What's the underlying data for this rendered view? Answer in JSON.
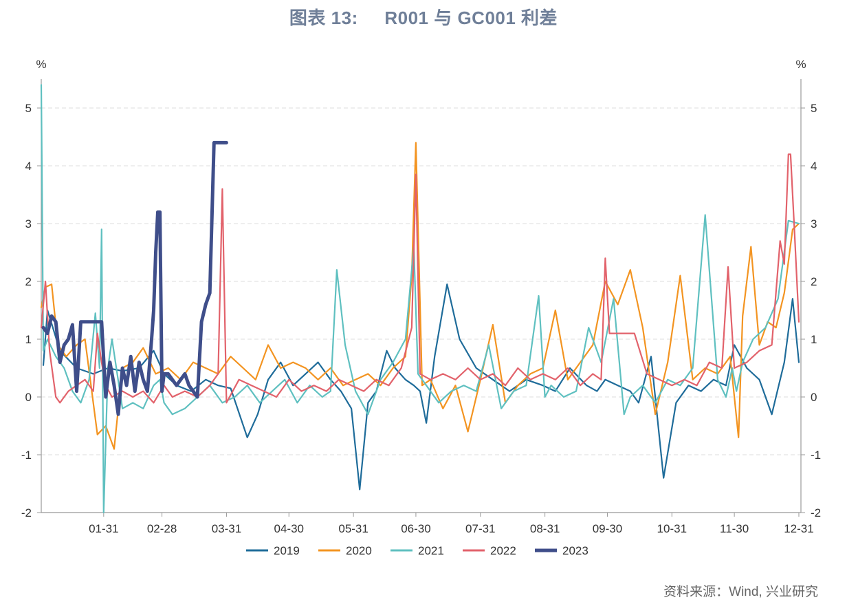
{
  "title": "图表 13:     R001 与 GC001 利差",
  "source": "资料来源：Wind, 兴业研究",
  "chart_data": {
    "type": "line",
    "title": "图表 13:     R001 与 GC001 利差",
    "y_unit_left": "%",
    "y_unit_right": "%",
    "ylim": [
      -2,
      5.5
    ],
    "yticks": [
      -2,
      -1,
      0,
      1,
      2,
      3,
      4,
      5
    ],
    "xlim": [
      1,
      366
    ],
    "x_tick_positions": [
      31,
      59,
      90,
      120,
      151,
      181,
      212,
      243,
      273,
      304,
      334,
      365
    ],
    "x_tick_labels": [
      "01-31",
      "02-28",
      "03-31",
      "04-30",
      "05-31",
      "06-30",
      "07-31",
      "08-31",
      "09-30",
      "10-31",
      "11-30",
      "12-31"
    ],
    "grid": "horizontal-dashed",
    "legend_position": "bottom",
    "series": [
      {
        "name": "2019",
        "color": "#1f6c9a",
        "x": [
          2,
          4,
          10,
          18,
          26,
          33,
          40,
          48,
          55,
          60,
          66,
          73,
          80,
          86,
          92,
          100,
          105,
          110,
          116,
          122,
          128,
          134,
          140,
          145,
          150,
          154,
          158,
          162,
          167,
          171,
          176,
          180,
          183,
          186,
          190,
          196,
          202,
          210,
          218,
          226,
          234,
          242,
          248,
          255,
          263,
          268,
          272,
          278,
          284,
          288,
          294,
          300,
          306,
          312,
          318,
          324,
          330,
          334,
          340,
          346,
          352,
          358,
          362,
          365
        ],
        "y": [
          0.55,
          1.5,
          0.8,
          0.5,
          0.4,
          0.5,
          0.45,
          0.5,
          0.8,
          0.4,
          0.2,
          0.1,
          0.3,
          0.2,
          0.15,
          -0.7,
          -0.3,
          0.3,
          0.6,
          0.2,
          0.4,
          0.6,
          0.3,
          0.1,
          -0.2,
          -1.6,
          -0.1,
          0.1,
          0.8,
          0.5,
          0.3,
          0.2,
          0.1,
          -0.45,
          0.7,
          1.95,
          1.0,
          0.5,
          0.3,
          0.1,
          0.3,
          0.2,
          0.1,
          0.5,
          0.2,
          0.1,
          0.3,
          0.2,
          0.1,
          -0.1,
          0.7,
          -1.4,
          -0.1,
          0.2,
          0.1,
          0.3,
          0.2,
          0.9,
          0.5,
          0.3,
          -0.3,
          0.6,
          1.7,
          0.6
        ]
      },
      {
        "name": "2020",
        "color": "#f39421",
        "x": [
          1,
          3,
          6,
          9,
          13,
          18,
          22,
          28,
          32,
          36,
          40,
          45,
          50,
          56,
          62,
          68,
          74,
          80,
          86,
          92,
          98,
          104,
          110,
          116,
          122,
          128,
          134,
          140,
          146,
          152,
          158,
          164,
          170,
          176,
          179,
          181,
          184,
          188,
          194,
          200,
          206,
          212,
          218,
          224,
          230,
          236,
          242,
          248,
          254,
          260,
          266,
          272,
          278,
          284,
          290,
          296,
          302,
          308,
          314,
          320,
          326,
          332,
          336,
          338,
          342,
          346,
          350,
          354,
          358,
          362,
          365
        ],
        "y": [
          1.55,
          1.9,
          1.95,
          0.9,
          0.7,
          0.9,
          1.0,
          -0.65,
          -0.5,
          -0.9,
          0.5,
          0.6,
          0.85,
          0.4,
          0.5,
          0.3,
          0.6,
          0.5,
          0.4,
          0.7,
          0.5,
          0.3,
          0.9,
          0.5,
          0.6,
          0.5,
          0.3,
          0.5,
          0.2,
          0.3,
          0.4,
          0.2,
          0.5,
          0.7,
          2.1,
          4.4,
          0.2,
          0.3,
          -0.2,
          0.2,
          -0.6,
          0.3,
          1.25,
          -0.1,
          0.2,
          0.4,
          0.5,
          1.5,
          0.3,
          0.6,
          0.9,
          2.0,
          1.6,
          2.2,
          1.2,
          -0.3,
          0.6,
          2.1,
          0.3,
          0.5,
          0.4,
          0.7,
          -0.7,
          1.4,
          2.6,
          0.9,
          1.3,
          1.2,
          1.8,
          2.9,
          3.0
        ]
      },
      {
        "name": "2021",
        "color": "#5fc0c0",
        "x": [
          1,
          2,
          4,
          8,
          12,
          16,
          20,
          24,
          27,
          29,
          30,
          31,
          33,
          35,
          40,
          45,
          50,
          55,
          58,
          60,
          64,
          70,
          76,
          82,
          88,
          94,
          100,
          106,
          112,
          118,
          124,
          130,
          136,
          140,
          143,
          147,
          152,
          158,
          164,
          170,
          176,
          180,
          182,
          186,
          192,
          198,
          204,
          210,
          216,
          222,
          228,
          234,
          240,
          243,
          246,
          252,
          258,
          264,
          270,
          276,
          281,
          284,
          290,
          296,
          302,
          308,
          314,
          320,
          326,
          330,
          333,
          335,
          338,
          343,
          349,
          355,
          360,
          365
        ],
        "y": [
          5.4,
          0.8,
          1.0,
          0.7,
          0.5,
          0.1,
          -0.1,
          0.3,
          1.45,
          0.5,
          2.9,
          -2.0,
          0.5,
          1.0,
          -0.2,
          -0.1,
          -0.2,
          0.2,
          0.3,
          -0.1,
          -0.3,
          -0.2,
          0.0,
          0.2,
          -0.1,
          0.0,
          0.2,
          -0.1,
          0.1,
          0.3,
          -0.1,
          0.2,
          0.0,
          0.1,
          2.2,
          0.9,
          0.1,
          -0.3,
          0.3,
          0.6,
          1.0,
          2.6,
          0.4,
          0.2,
          -0.1,
          0.1,
          0.2,
          0.1,
          0.9,
          -0.2,
          0.1,
          0.2,
          1.75,
          0.0,
          0.2,
          0.0,
          0.1,
          1.2,
          0.6,
          1.7,
          -0.3,
          0.0,
          0.2,
          -0.1,
          0.3,
          0.2,
          0.5,
          3.15,
          0.3,
          0.0,
          0.5,
          0.1,
          0.6,
          1.0,
          1.2,
          1.7,
          3.05,
          3.0
        ]
      },
      {
        "name": "2022",
        "color": "#e2626b",
        "x": [
          1,
          3,
          5,
          8,
          10,
          14,
          18,
          22,
          26,
          28,
          30,
          32,
          35,
          40,
          45,
          50,
          55,
          60,
          64,
          70,
          76,
          82,
          86,
          88,
          90,
          96,
          102,
          108,
          114,
          120,
          126,
          132,
          138,
          144,
          150,
          156,
          162,
          168,
          174,
          179,
          181,
          183,
          188,
          194,
          200,
          206,
          212,
          218,
          224,
          230,
          236,
          242,
          248,
          254,
          260,
          266,
          270,
          272,
          274,
          280,
          286,
          292,
          298,
          304,
          310,
          316,
          322,
          328,
          331,
          334,
          340,
          346,
          352,
          356,
          358,
          360,
          361,
          363,
          365
        ],
        "y": [
          1.2,
          2.0,
          0.8,
          0.0,
          -0.1,
          0.1,
          0.2,
          0.3,
          0.1,
          1.1,
          0.6,
          0.2,
          0.0,
          0.1,
          0.0,
          0.1,
          -0.1,
          0.2,
          0.0,
          0.1,
          0.0,
          0.2,
          0.4,
          3.6,
          -0.1,
          0.3,
          0.2,
          0.1,
          0.0,
          0.3,
          0.1,
          0.2,
          0.1,
          0.3,
          0.2,
          0.1,
          0.3,
          0.2,
          0.5,
          1.2,
          3.85,
          0.4,
          0.3,
          0.4,
          0.3,
          0.5,
          0.3,
          0.4,
          0.2,
          0.5,
          0.3,
          0.4,
          0.3,
          0.5,
          0.2,
          0.4,
          0.3,
          2.4,
          1.1,
          1.1,
          1.1,
          0.4,
          0.3,
          0.2,
          0.3,
          0.2,
          0.6,
          0.5,
          2.25,
          0.5,
          0.6,
          0.8,
          0.9,
          2.7,
          2.3,
          4.2,
          4.2,
          2.8,
          1.3
        ]
      },
      {
        "name": "2023",
        "color": "#3f4e8a",
        "x": [
          2,
          4,
          6,
          8,
          10,
          12,
          14,
          16,
          18,
          20,
          22,
          24,
          26,
          28,
          30,
          32,
          34,
          36,
          38,
          40,
          42,
          44,
          46,
          48,
          50,
          52,
          54,
          55,
          56,
          57,
          58,
          59,
          60,
          62,
          64,
          66,
          68,
          70,
          72,
          74,
          76,
          78,
          80,
          82,
          84,
          86,
          88,
          90
        ],
        "y": [
          1.2,
          1.1,
          1.4,
          1.3,
          0.6,
          0.9,
          1.0,
          1.25,
          0.1,
          1.3,
          1.3,
          1.3,
          1.3,
          1.3,
          1.3,
          0.0,
          0.6,
          0.2,
          -0.3,
          0.5,
          0.2,
          0.7,
          0.1,
          0.6,
          0.3,
          0.1,
          1.0,
          1.5,
          2.5,
          3.2,
          3.2,
          0.1,
          0.4,
          0.4,
          0.3,
          0.2,
          0.3,
          0.4,
          0.2,
          0.1,
          0.0,
          1.3,
          1.6,
          1.8,
          4.4,
          4.4,
          4.4,
          4.4
        ]
      }
    ]
  }
}
